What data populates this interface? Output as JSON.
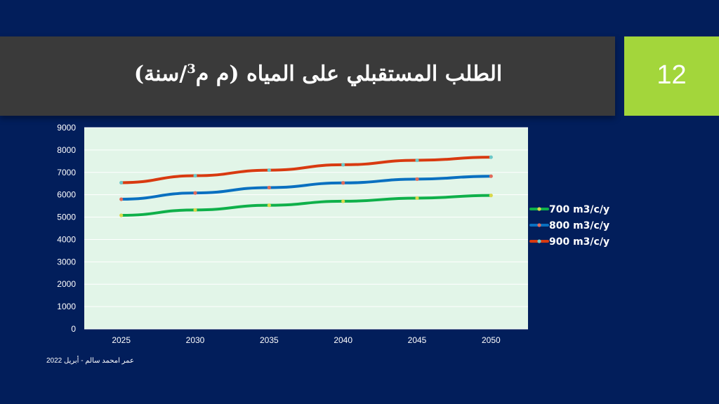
{
  "slide": {
    "title_main": "الطلب المستقبلي على المياه  (م م",
    "title_sup": "3",
    "title_end": "/سنة)",
    "number": "12",
    "footer": "عمر امحمد سالم - أبريل 2022"
  },
  "colors": {
    "background": "#021e5b",
    "title_bar": "#3a3a3a",
    "number_box": "#a3d63b",
    "plot_area": "#e2f5e8"
  },
  "chart_data": {
    "type": "line",
    "title": "",
    "xlabel": "",
    "ylabel": "",
    "categories": [
      "2025",
      "2030",
      "2035",
      "2040",
      "2045",
      "2050"
    ],
    "ylim": [
      0,
      9000
    ],
    "yticks": [
      0,
      1000,
      2000,
      3000,
      4000,
      5000,
      6000,
      7000,
      8000,
      9000
    ],
    "grid": true,
    "legend_position": "right",
    "series": [
      {
        "name": "700 m3/c/y",
        "color": "#0fb04a",
        "marker_color": "#d8d84a",
        "values": [
          5080,
          5320,
          5530,
          5710,
          5850,
          5970
        ]
      },
      {
        "name": "800 m3/c/y",
        "color": "#0a70c0",
        "marker_color": "#e06a5a",
        "values": [
          5800,
          6080,
          6320,
          6530,
          6700,
          6830
        ]
      },
      {
        "name": "900 m3/c/y",
        "color": "#d83a10",
        "marker_color": "#6cc8c8",
        "values": [
          6540,
          6850,
          7100,
          7340,
          7540,
          7680
        ]
      }
    ]
  }
}
